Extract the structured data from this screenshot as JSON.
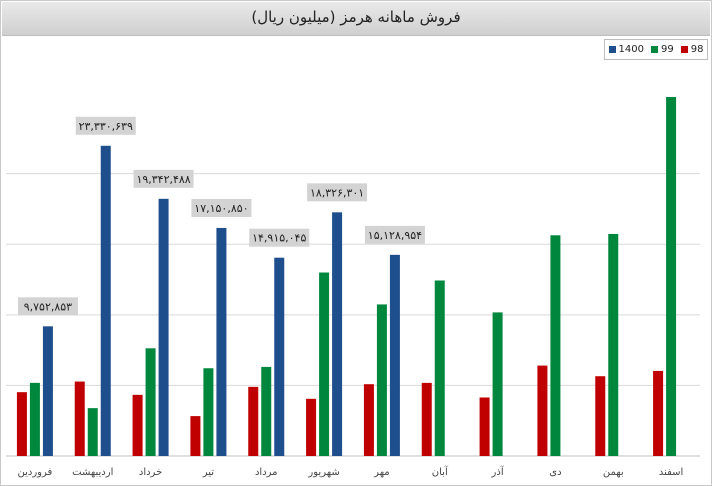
{
  "chart_data": {
    "type": "bar",
    "title": "فروش ماهانه هرمز (میلیون ریال)",
    "xlabel": "",
    "ylabel": "",
    "ylim": [
      0,
      27000000
    ],
    "grid": true,
    "legend_position": "top-right",
    "categories": [
      "فروردین",
      "اردیبهشت",
      "خرداد",
      "تیر",
      "مرداد",
      "شهریور",
      "مهر",
      "آبان",
      "آذر",
      "دی",
      "بهمن",
      "اسفند"
    ],
    "series": [
      {
        "name": "98",
        "color": "#c00000",
        "values": [
          4800000,
          5600000,
          4600000,
          3000000,
          5200000,
          4300000,
          5400000,
          5500000,
          4400000,
          6800000,
          6000000,
          6400000
        ]
      },
      {
        "name": "99",
        "color": "#00873e",
        "values": [
          5500000,
          3600000,
          8100000,
          6600000,
          6700000,
          13800000,
          11400000,
          13200000,
          10800000,
          16600000,
          16700000,
          27000000
        ]
      },
      {
        "name": "1400",
        "color": "#1f4e8c",
        "values": [
          9752853,
          23330639,
          19342488,
          17150850,
          14915045,
          18326301,
          15128954,
          null,
          null,
          null,
          null,
          null
        ]
      }
    ],
    "data_labels": [
      "۹,۷۵۲,۸۵۳",
      "۲۳,۳۳۰,۶۳۹",
      "۱۹,۳۴۲,۴۸۸",
      "۱۷,۱۵۰,۸۵۰",
      "۱۴,۹۱۵,۰۴۵",
      "۱۸,۳۲۶,۳۰۱",
      "۱۵,۱۲۸,۹۵۴"
    ]
  }
}
